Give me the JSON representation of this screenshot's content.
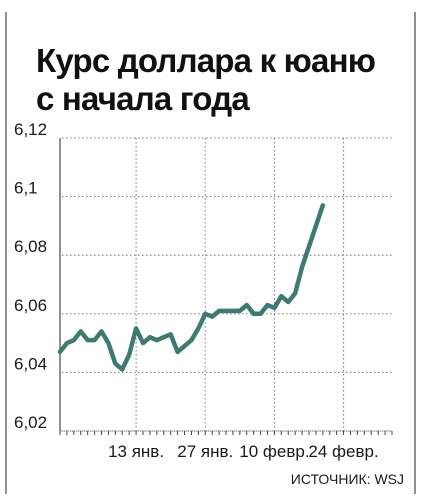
{
  "chart_data": {
    "type": "line",
    "title": "Курс доллара к юаню\nс начала года",
    "source": "ИСТОЧНИК: WSJ",
    "xlabel": "",
    "ylabel": "",
    "ylim": [
      6.02,
      6.12
    ],
    "yticks": [
      "6,12",
      "6,1",
      "6,08",
      "6,06",
      "6,04",
      "6,02"
    ],
    "ytick_values": [
      6.12,
      6.1,
      6.08,
      6.06,
      6.04,
      6.02
    ],
    "x_index_range": [
      0,
      48
    ],
    "xticks": [
      {
        "label": "13 янв.",
        "index": 11
      },
      {
        "label": "27 янв.",
        "index": 21
      },
      {
        "label": "10 февр.",
        "index": 31
      },
      {
        "label": "24 февр.",
        "index": 41
      }
    ],
    "grid": true,
    "grid_style": "dotted",
    "line_color": "#3d7a72",
    "values": [
      6.047,
      6.05,
      6.051,
      6.054,
      6.051,
      6.051,
      6.054,
      6.05,
      6.043,
      6.041,
      6.046,
      6.055,
      6.05,
      6.052,
      6.051,
      6.052,
      6.053,
      6.047,
      6.049,
      6.051,
      6.055,
      6.06,
      6.059,
      6.061,
      6.061,
      6.061,
      6.061,
      6.063,
      6.06,
      6.06,
      6.063,
      6.062,
      6.066,
      6.064,
      6.067,
      6.076,
      6.083,
      6.09,
      6.097
    ]
  }
}
